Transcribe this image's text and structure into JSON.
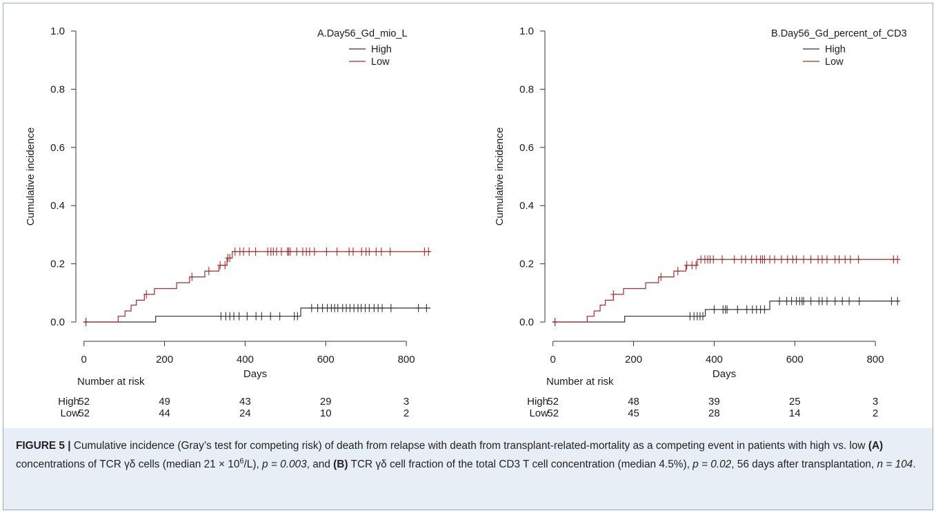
{
  "chart_data": [
    {
      "type": "line",
      "title": "A.Day56_Gd_mio_L",
      "xlabel": "Days",
      "ylabel": "Cumulative incidence",
      "xlim": [
        -20,
        870
      ],
      "ylim": [
        0,
        1.0
      ],
      "xticks": [
        "0",
        "200",
        "400",
        "600",
        "800"
      ],
      "yticks": [
        "0.0",
        "0.2",
        "0.4",
        "0.6",
        "0.8",
        "1.0"
      ],
      "legend_position": "top-right",
      "series": [
        {
          "name": "High",
          "color": "#333333",
          "steps": [
            [
              0,
              0
            ],
            [
              178,
              0.02
            ],
            [
              538,
              0.048
            ],
            [
              860,
              0.048
            ]
          ],
          "censor_x": [
            5,
            340,
            352,
            362,
            372,
            385,
            405,
            427,
            441,
            463,
            486,
            522,
            530,
            565,
            580,
            592,
            604,
            614,
            622,
            630,
            642,
            651,
            660,
            670,
            680,
            688,
            698,
            708,
            720,
            730,
            740,
            762,
            830,
            850
          ]
        },
        {
          "name": "Low",
          "color": "#a52a2a",
          "steps": [
            [
              0,
              0
            ],
            [
              85,
              0.02
            ],
            [
              102,
              0.038
            ],
            [
              117,
              0.058
            ],
            [
              130,
              0.075
            ],
            [
              150,
              0.095
            ],
            [
              175,
              0.115
            ],
            [
              230,
              0.135
            ],
            [
              262,
              0.155
            ],
            [
              300,
              0.175
            ],
            [
              335,
              0.195
            ],
            [
              355,
              0.22
            ],
            [
              368,
              0.242
            ],
            [
              860,
              0.242
            ]
          ],
          "censor_x": [
            5,
            155,
            268,
            310,
            338,
            350,
            357,
            362,
            375,
            387,
            396,
            410,
            426,
            456,
            464,
            470,
            478,
            490,
            505,
            508,
            512,
            528,
            543,
            552,
            560,
            572,
            602,
            628,
            658,
            668,
            689,
            700,
            708,
            725,
            738,
            760,
            845,
            855
          ]
        }
      ],
      "risk_table": {
        "title": "Number at risk",
        "times": [
          0,
          200,
          400,
          600,
          800
        ],
        "rows": [
          {
            "label": "High",
            "values": [
              "52",
              "49",
              "43",
              "29",
              "3"
            ]
          },
          {
            "label": "Low",
            "values": [
              "52",
              "44",
              "24",
              "10",
              "2"
            ]
          }
        ]
      }
    },
    {
      "type": "line",
      "title": "B.Day56_Gd_percent_of_CD3",
      "xlabel": "Days",
      "ylabel": "Cumulative incidence",
      "xlim": [
        -20,
        870
      ],
      "ylim": [
        0,
        1.0
      ],
      "xticks": [
        "0",
        "200",
        "400",
        "600",
        "800"
      ],
      "yticks": [
        "0.0",
        "0.2",
        "0.4",
        "0.6",
        "0.8",
        "1.0"
      ],
      "legend_position": "top-right",
      "series": [
        {
          "name": "High",
          "color": "#333333",
          "steps": [
            [
              0,
              0
            ],
            [
              178,
              0.02
            ],
            [
              378,
              0.043
            ],
            [
              538,
              0.072
            ],
            [
              860,
              0.072
            ]
          ],
          "censor_x": [
            5,
            340,
            350,
            358,
            365,
            372,
            400,
            422,
            428,
            432,
            458,
            481,
            495,
            505,
            515,
            525,
            562,
            580,
            592,
            604,
            612,
            618,
            622,
            640,
            660,
            668,
            680,
            700,
            718,
            735,
            760,
            840,
            855
          ]
        },
        {
          "name": "Low",
          "color": "#a52a2a",
          "steps": [
            [
              0,
              0
            ],
            [
              85,
              0.02
            ],
            [
              102,
              0.038
            ],
            [
              117,
              0.058
            ],
            [
              130,
              0.075
            ],
            [
              150,
              0.095
            ],
            [
              175,
              0.115
            ],
            [
              230,
              0.135
            ],
            [
              262,
              0.155
            ],
            [
              300,
              0.175
            ],
            [
              330,
              0.195
            ],
            [
              358,
              0.215
            ],
            [
              860,
              0.215
            ]
          ],
          "censor_x": [
            5,
            150,
            268,
            310,
            332,
            345,
            355,
            367,
            377,
            384,
            390,
            398,
            420,
            450,
            468,
            478,
            493,
            505,
            515,
            520,
            525,
            538,
            550,
            567,
            582,
            595,
            604,
            622,
            640,
            658,
            668,
            680,
            700,
            710,
            725,
            738,
            758,
            845,
            855
          ]
        }
      ],
      "risk_table": {
        "title": "Number at risk",
        "times": [
          0,
          200,
          400,
          600,
          800
        ],
        "rows": [
          {
            "label": "High",
            "values": [
              "52",
              "48",
              "39",
              "25",
              "3"
            ]
          },
          {
            "label": "Low",
            "values": [
              "52",
              "45",
              "28",
              "14",
              "2"
            ]
          }
        ]
      }
    }
  ],
  "caption": {
    "label": "FIGURE 5 |",
    "part1": " Cumulative incidence (Gray’s test for competing risk) of death from relapse with death from transplant-related-mortality as a competing event in patients with high vs. low ",
    "marker_a": "(A)",
    "part2": " concentrations of TCR γδ cells (median 21 × 10",
    "superscript": "6",
    "part3": "/L), ",
    "p_a": "p = 0.003",
    "part4": ", and ",
    "marker_b": "(B)",
    "part5": " TCR γδ cell fraction of the total CD3 T cell concentration (median 4.5%), ",
    "p_b": "p = 0.02",
    "part6": ", 56 days after transplantation, ",
    "n": "n = 104",
    "part7": "."
  }
}
